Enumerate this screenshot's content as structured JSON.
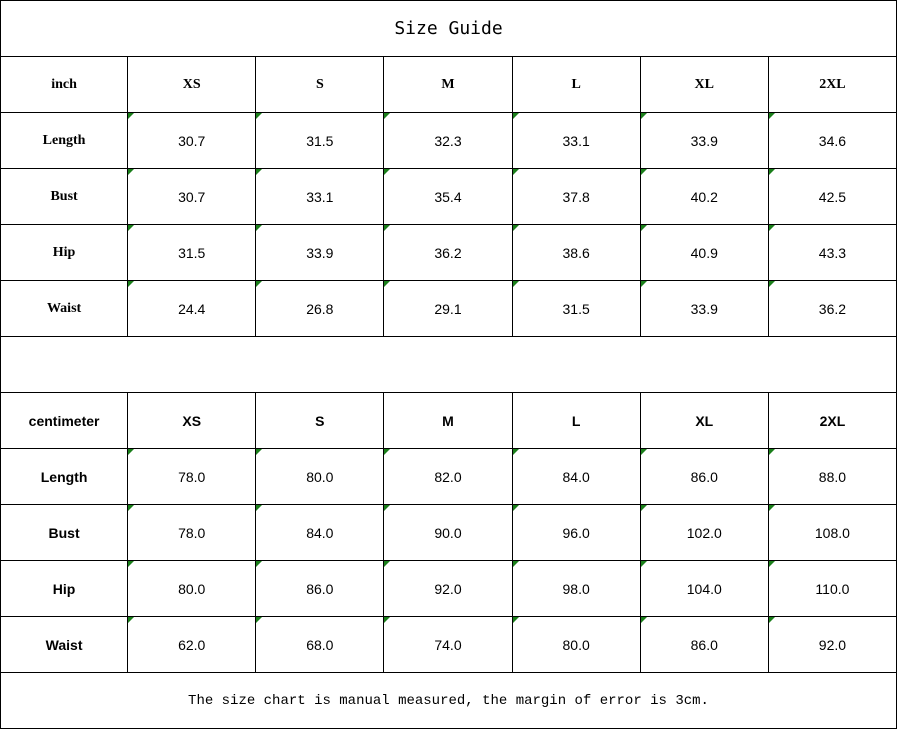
{
  "title": "Size Guide",
  "colors": {
    "error_indicator": "#1a7f1a",
    "border": "#000000"
  },
  "inch_table": {
    "unit": "inch",
    "sizes": [
      "XS",
      "S",
      "M",
      "L",
      "XL",
      "2XL"
    ],
    "rows": [
      {
        "label": "Length",
        "values": [
          "30.7",
          "31.5",
          "32.3",
          "33.1",
          "33.9",
          "34.6"
        ]
      },
      {
        "label": "Bust",
        "values": [
          "30.7",
          "33.1",
          "35.4",
          "37.8",
          "40.2",
          "42.5"
        ]
      },
      {
        "label": "Hip",
        "values": [
          "31.5",
          "33.9",
          "36.2",
          "38.6",
          "40.9",
          "43.3"
        ]
      },
      {
        "label": "Waist",
        "values": [
          "24.4",
          "26.8",
          "29.1",
          "31.5",
          "33.9",
          "36.2"
        ]
      }
    ]
  },
  "cm_table": {
    "unit": "centimeter",
    "sizes": [
      "XS",
      "S",
      "M",
      "L",
      "XL",
      "2XL"
    ],
    "rows": [
      {
        "label": "Length",
        "values": [
          "78.0",
          "80.0",
          "82.0",
          "84.0",
          "86.0",
          "88.0"
        ]
      },
      {
        "label": "Bust",
        "values": [
          "78.0",
          "84.0",
          "90.0",
          "96.0",
          "102.0",
          "108.0"
        ]
      },
      {
        "label": "Hip",
        "values": [
          "80.0",
          "86.0",
          "92.0",
          "98.0",
          "104.0",
          "110.0"
        ]
      },
      {
        "label": "Waist",
        "values": [
          "62.0",
          "68.0",
          "74.0",
          "80.0",
          "86.0",
          "92.0"
        ]
      }
    ]
  },
  "note": "The size chart is manual measured, the margin of error is 3cm."
}
